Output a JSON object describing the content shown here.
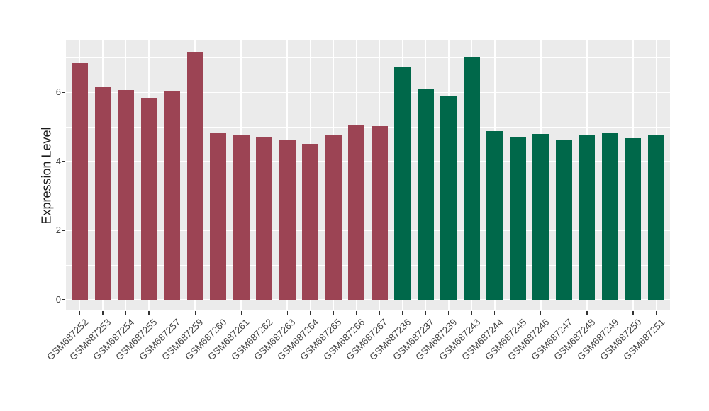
{
  "chart_data": {
    "type": "bar",
    "title": "",
    "xlabel": "",
    "ylabel": "Expression Level",
    "ylim": [
      -0.31,
      7.5
    ],
    "yticks": [
      0,
      2,
      4,
      6
    ],
    "yticks_minor": [
      1,
      3,
      5,
      7
    ],
    "grid": "white major and minor gridlines on gray panel",
    "legend": "none",
    "bar_width_fraction": 0.7,
    "series": [
      {
        "name": "maroon-group",
        "color": "#9C4454",
        "categories": [
          "GSM687252",
          "GSM687253",
          "GSM687254",
          "GSM687255",
          "GSM687257",
          "GSM687259",
          "GSM687260",
          "GSM687261",
          "GSM687262",
          "GSM687263",
          "GSM687264",
          "GSM687265",
          "GSM687266",
          "GSM687267"
        ],
        "values": [
          6.85,
          6.14,
          6.07,
          5.85,
          6.02,
          7.15,
          4.82,
          4.75,
          4.71,
          4.61,
          4.52,
          4.78,
          5.05,
          5.02
        ]
      },
      {
        "name": "green-group",
        "color": "#00684A",
        "categories": [
          "GSM687236",
          "GSM687237",
          "GSM687239",
          "GSM687243",
          "GSM687244",
          "GSM687245",
          "GSM687246",
          "GSM687247",
          "GSM687248",
          "GSM687249",
          "GSM687250",
          "GSM687251"
        ],
        "values": [
          6.72,
          6.09,
          5.88,
          7.01,
          4.88,
          4.71,
          4.79,
          4.62,
          4.77,
          4.84,
          4.67,
          4.75
        ]
      }
    ],
    "colors": {
      "panel_background": "#EBEBEB",
      "gridline": "#FFFFFF",
      "axis_text": "#454545",
      "axis_title": "#1A1A1A",
      "tick_mark": "#333333"
    }
  }
}
